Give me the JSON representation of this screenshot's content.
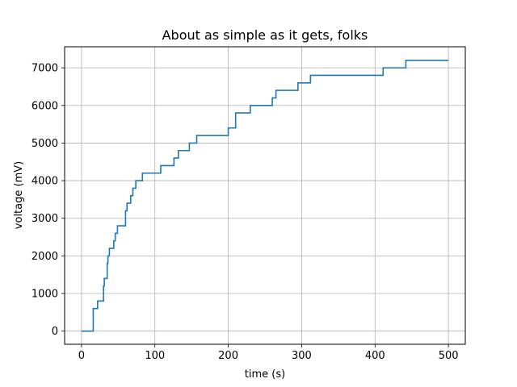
{
  "chart_data": {
    "type": "line",
    "title": "About as simple as it gets, folks",
    "xlabel": "time (s)",
    "ylabel": "voltage (mV)",
    "xlim": [
      -23,
      523
    ],
    "ylim": [
      -350,
      7560
    ],
    "xticks": [
      0,
      100,
      200,
      300,
      400,
      500
    ],
    "yticks": [
      0,
      1000,
      2000,
      3000,
      4000,
      5000,
      6000,
      7000
    ],
    "grid": true,
    "line_color": "#1f77b4",
    "series": [
      {
        "step": "post",
        "x": [
          0,
          16,
          19,
          22,
          25,
          29,
          30,
          31,
          33,
          35,
          36,
          38,
          39,
          42,
          44,
          46,
          47,
          49,
          52,
          59,
          60,
          62,
          64,
          67,
          70,
          74,
          78,
          83,
          87,
          97,
          108,
          117,
          126,
          132,
          140,
          147,
          157,
          175,
          200,
          210,
          220,
          230,
          250,
          260,
          265,
          280,
          295,
          312,
          411,
          442,
          500
        ],
        "y": [
          0,
          600,
          600,
          800,
          800,
          800,
          1200,
          1400,
          1400,
          1800,
          2000,
          2200,
          2200,
          2200,
          2400,
          2600,
          2600,
          2800,
          2800,
          2800,
          3200,
          3400,
          3400,
          3600,
          3800,
          4000,
          4000,
          4200,
          4200,
          4200,
          4400,
          4400,
          4600,
          4800,
          4800,
          5000,
          5200,
          5200,
          5400,
          5800,
          5800,
          6000,
          6000,
          6200,
          6400,
          6400,
          6600,
          6800,
          7000,
          7200,
          7200
        ]
      }
    ]
  }
}
